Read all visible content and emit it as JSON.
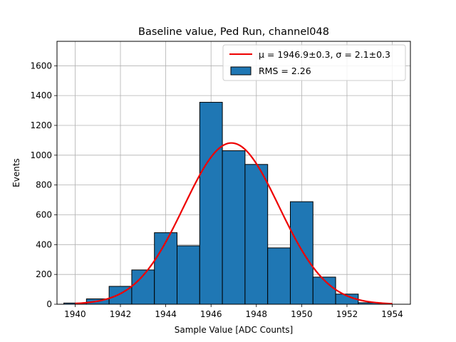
{
  "chart_data": {
    "type": "bar",
    "title": "Baseline value, Ped Run, channel048",
    "xlabel": "Sample Value [ADC Counts]",
    "ylabel": "Events",
    "xlim": [
      1939.2,
      1954.8
    ],
    "ylim": [
      0,
      1764
    ],
    "x_ticks": [
      "1940",
      "1942",
      "1944",
      "1946",
      "1948",
      "1950",
      "1952",
      "1954"
    ],
    "y_ticks": [
      "0",
      "200",
      "400",
      "600",
      "800",
      "1000",
      "1200",
      "1400",
      "1600"
    ],
    "grid": true,
    "legend_position": "top-right",
    "bar_color": "#1f77b4",
    "fit_color": "#ee0000",
    "histogram": {
      "label": "RMS = 2.26",
      "bin_edges": [
        1939.5,
        1940.5,
        1941.5,
        1942.5,
        1943.5,
        1944.5,
        1945.5,
        1946.5,
        1947.5,
        1948.5,
        1949.5,
        1950.5,
        1951.5,
        1952.5,
        1953.5
      ],
      "counts": [
        8,
        36,
        120,
        230,
        480,
        392,
        1355,
        1030,
        938,
        378,
        688,
        182,
        68,
        10
      ]
    },
    "fit": {
      "label_mu": "μ = 1946.9±0.3, ",
      "label_sigma": "σ = 2.1±0.3",
      "mu": 1946.9,
      "sigma": 2.1,
      "amplitude": 1082,
      "x_range": [
        1940,
        1954
      ]
    }
  }
}
